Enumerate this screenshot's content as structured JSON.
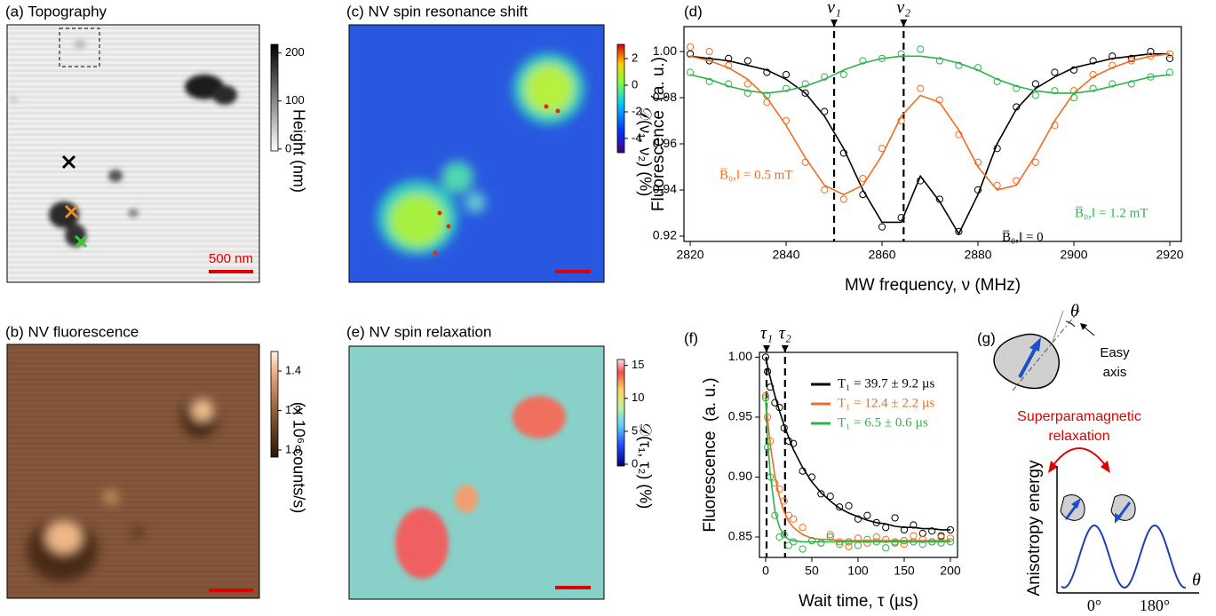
{
  "image_panels": [
    {
      "title": "(a) Topography",
      "colorbar": {
        "lim": [
          -4,
          218
        ],
        "ticks": [
          0,
          100,
          200
        ],
        "label": "Height (nm)"
      },
      "scale_bar": "500 nm"
    },
    {
      "title": "(b) NV fluorescence",
      "colorbar": {
        "lim": [
          0.964,
          1.499
        ],
        "ticks": [
          {
            "value": 1,
            "label": "1.0"
          },
          1.2,
          1.4
        ],
        "label": "(x 10⁶ counts/s)"
      }
    },
    {
      "title": "(c) NV spin resonance shift",
      "colorbar": {
        "lim": [
          -5.07,
          3.07
        ],
        "ticks": [
          -4,
          -2,
          0,
          2
        ],
        "label": "𝒟(ν₁, ν₂) (%)"
      }
    },
    {
      "title": "(e) NV spin relaxation",
      "colorbar": {
        "lim": [
          -0.27,
          15.9
        ],
        "ticks": [
          0,
          5,
          10,
          15
        ],
        "label": "𝒟(τ₁, τ₂) (%)"
      }
    }
  ],
  "chart_data": [
    {
      "type": "scatter",
      "label": "(d)",
      "xlabel": "MW frequency, ν (MHz)",
      "ylabel": "Fluorescence  (a. u.)",
      "xlim": [
        2818.7,
        2922.4
      ],
      "ylim": [
        0.9177,
        1.0108
      ],
      "xticks": [
        2820,
        2840,
        2860,
        2880,
        2900,
        2920
      ],
      "yticks": [
        0.92,
        0.94,
        0.96,
        0.98,
        {
          "value": 1,
          "label": "1.00"
        }
      ],
      "markers": [
        {
          "label": "ν₁",
          "x": 2850
        },
        {
          "label": "ν₂",
          "x": 2864.5
        }
      ],
      "legend": "inline",
      "x": [
        2820,
        2824,
        2828,
        2832,
        2836,
        2840,
        2844,
        2848,
        2852,
        2856,
        2860,
        2864,
        2868,
        2872,
        2876,
        2880,
        2884,
        2888,
        2892,
        2896,
        2900,
        2904,
        2908,
        2912,
        2916,
        2920
      ],
      "series": [
        {
          "name": "B̅₀,‖ = 0",
          "color": "#000000",
          "values": [
            0.999,
            0.996,
            0.997,
            0.996,
            0.991,
            0.99,
            0.982,
            0.974,
            0.956,
            0.938,
            0.924,
            0.928,
            0.944,
            0.936,
            0.922,
            0.94,
            0.958,
            0.976,
            0.986,
            0.991,
            0.992,
            0.996,
            0.998,
            0.997,
            1.0,
            0.997
          ],
          "fit": [
            0.998,
            0.997,
            0.996,
            0.994,
            0.992,
            0.988,
            0.982,
            0.972,
            0.958,
            0.94,
            0.926,
            0.926,
            0.946,
            0.935,
            0.921,
            0.938,
            0.96,
            0.975,
            0.984,
            0.989,
            0.993,
            0.995,
            0.997,
            0.998,
            0.999,
            0.999
          ]
        },
        {
          "name": "B̅₀,‖ = 0.5 mT",
          "color": "#f26b21",
          "values": [
            1.002,
            1.0,
            0.994,
            0.986,
            0.978,
            0.97,
            0.952,
            0.94,
            0.936,
            0.945,
            0.958,
            0.97,
            0.984,
            0.979,
            0.964,
            0.952,
            0.942,
            0.944,
            0.952,
            0.968,
            0.983,
            0.99,
            0.994,
            0.996,
            0.998,
            0.999
          ],
          "fit": [
            0.998,
            0.996,
            0.993,
            0.988,
            0.98,
            0.968,
            0.954,
            0.942,
            0.938,
            0.942,
            0.955,
            0.972,
            0.981,
            0.978,
            0.966,
            0.95,
            0.94,
            0.942,
            0.955,
            0.97,
            0.982,
            0.989,
            0.993,
            0.996,
            0.998,
            0.999
          ]
        },
        {
          "name": "B̅₀,‖ = 1.2 mT",
          "color": "#2db34a",
          "values": [
            0.991,
            0.987,
            0.986,
            0.982,
            0.981,
            0.984,
            0.986,
            0.989,
            0.99,
            0.996,
            0.997,
            0.999,
            1.001,
            0.996,
            0.994,
            0.993,
            0.987,
            0.984,
            0.981,
            0.983,
            0.98,
            0.984,
            0.986,
            0.986,
            0.989,
            0.991
          ],
          "fit": [
            0.99,
            0.988,
            0.985,
            0.983,
            0.982,
            0.983,
            0.985,
            0.988,
            0.992,
            0.995,
            0.997,
            0.998,
            0.998,
            0.997,
            0.995,
            0.992,
            0.988,
            0.985,
            0.983,
            0.982,
            0.982,
            0.983,
            0.985,
            0.987,
            0.989,
            0.99
          ]
        }
      ]
    },
    {
      "type": "scatter",
      "label": "(f)",
      "xlabel": "Wait time, τ (µs)",
      "ylabel": "Fluorescence  (a. u.)",
      "xlim": [
        -6.7,
        207.7
      ],
      "ylim": [
        0.833,
        1.004
      ],
      "xticks": [
        0,
        50,
        100,
        150,
        200
      ],
      "yticks": [
        0.85,
        {
          "value": 0.9,
          "label": "0.90"
        },
        0.95,
        {
          "value": 1,
          "label": "1.00"
        }
      ],
      "markers": [
        {
          "label": "τ₁",
          "x": 1
        },
        {
          "label": "τ₂",
          "x": 21
        }
      ],
      "legend": "upper right",
      "x": [
        0,
        2,
        5,
        10,
        15,
        20,
        25,
        30,
        40,
        50,
        60,
        70,
        80,
        90,
        100,
        110,
        120,
        130,
        140,
        150,
        160,
        170,
        180,
        190,
        200
      ],
      "series": [
        {
          "name": "T₁ = 39.7 ± 9.2 µs",
          "color": "#000000",
          "values": [
            1.0,
            0.988,
            0.975,
            0.962,
            0.958,
            0.941,
            0.93,
            0.928,
            0.905,
            0.9,
            0.886,
            0.884,
            0.875,
            0.876,
            0.865,
            0.868,
            0.862,
            0.858,
            0.866,
            0.856,
            0.86,
            0.853,
            0.855,
            0.851,
            0.856
          ],
          "fit": [
            1.0,
            0.993,
            0.983,
            0.968,
            0.955,
            0.943,
            0.933,
            0.923,
            0.908,
            0.896,
            0.887,
            0.88,
            0.874,
            0.87,
            0.867,
            0.864,
            0.862,
            0.861,
            0.859,
            0.858,
            0.858,
            0.857,
            0.857,
            0.856,
            0.856
          ]
        },
        {
          "name": "T₁ = 12.4 ± 2.2 µs",
          "color": "#f26b21",
          "values": [
            0.968,
            0.95,
            0.93,
            0.895,
            0.89,
            0.88,
            0.868,
            0.865,
            0.858,
            0.847,
            0.845,
            0.852,
            0.846,
            0.842,
            0.849,
            0.845,
            0.85,
            0.848,
            0.846,
            0.844,
            0.851,
            0.848,
            0.846,
            0.85,
            0.849
          ],
          "fit": [
            0.967,
            0.949,
            0.927,
            0.901,
            0.883,
            0.871,
            0.863,
            0.858,
            0.852,
            0.849,
            0.848,
            0.848,
            0.847,
            0.847,
            0.847,
            0.847,
            0.847,
            0.847,
            0.847,
            0.847,
            0.847,
            0.847,
            0.847,
            0.847,
            0.847
          ]
        },
        {
          "name": "T₁ = 6.5 ± 0.6 µs",
          "color": "#2db34a",
          "values": [
            0.966,
            0.925,
            0.9,
            0.868,
            0.85,
            0.852,
            0.843,
            0.846,
            0.84,
            0.847,
            0.845,
            0.85,
            0.844,
            0.846,
            0.843,
            0.848,
            0.846,
            0.841,
            0.845,
            0.847,
            0.846,
            0.844,
            0.846,
            0.845,
            0.846
          ],
          "fit": [
            0.966,
            0.934,
            0.902,
            0.872,
            0.858,
            0.851,
            0.848,
            0.847,
            0.846,
            0.846,
            0.846,
            0.846,
            0.846,
            0.846,
            0.846,
            0.846,
            0.846,
            0.846,
            0.846,
            0.846,
            0.846,
            0.846,
            0.846,
            0.846,
            0.846
          ]
        }
      ]
    }
  ],
  "diagram": {
    "label": "(g)",
    "angle": "θ",
    "easy_axis": [
      "Easy",
      "axis"
    ],
    "relaxation": [
      "Superparamagnetic",
      "relaxation"
    ],
    "y_label": "Anisotropy energy",
    "x_symbol": "θ",
    "x_ticks": [
      "0°",
      "180°"
    ]
  }
}
